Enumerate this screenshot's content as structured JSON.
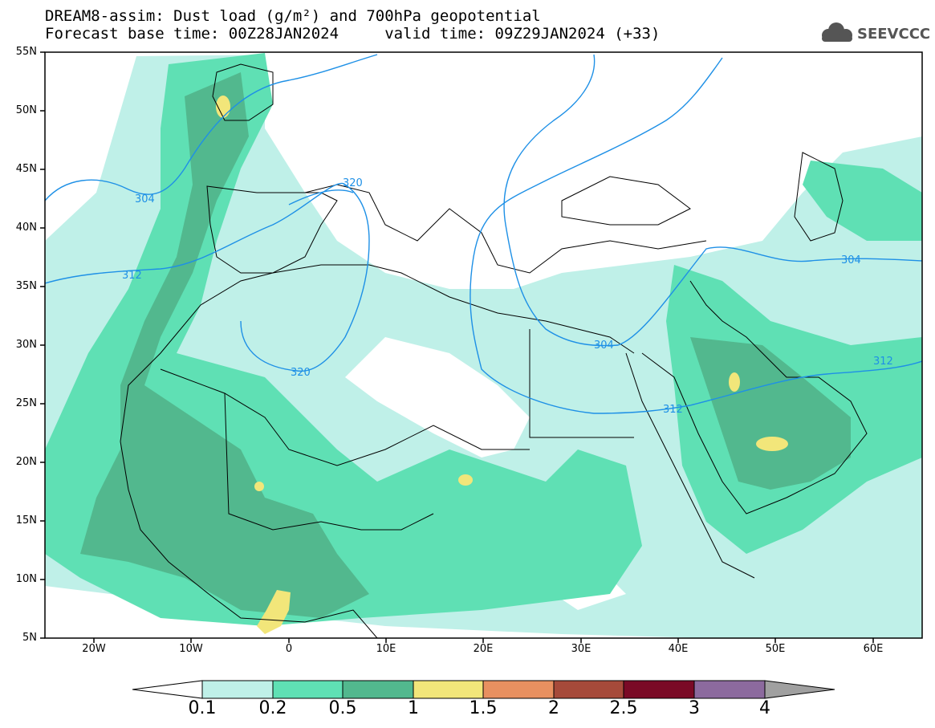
{
  "title_line1": "DREAM8-assim: Dust load (g/m²) and 700hPa geopotential",
  "title_line2": "Forecast base time: 00Z28JAN2024     valid time: 09Z29JAN2024 (+33)",
  "logo": {
    "text": "SEEVCCC",
    "icon": "cloud-icon",
    "color": "#555555"
  },
  "axes": {
    "lat_labels": [
      "55N",
      "50N",
      "45N",
      "40N",
      "35N",
      "30N",
      "25N",
      "20N",
      "15N",
      "10N",
      "5N"
    ],
    "lon_labels": [
      "20W",
      "10W",
      "0",
      "10E",
      "20E",
      "30E",
      "40E",
      "50E",
      "60E"
    ]
  },
  "colorbar": {
    "labels": [
      "0.1",
      "0.2",
      "0.5",
      "1",
      "1.5",
      "2",
      "2.5",
      "3",
      "4"
    ],
    "colors": [
      "#ffffff",
      "#bff0e8",
      "#5fe0b4",
      "#52b88e",
      "#f2e67a",
      "#e89060",
      "#a64a3a",
      "#7a0a26",
      "#8c6a9e",
      "#a0a0a0"
    ]
  },
  "contours": {
    "color": "#1e90e6",
    "labels": [
      "304",
      "312",
      "320",
      "320",
      "304",
      "304",
      "312",
      "312"
    ]
  }
}
